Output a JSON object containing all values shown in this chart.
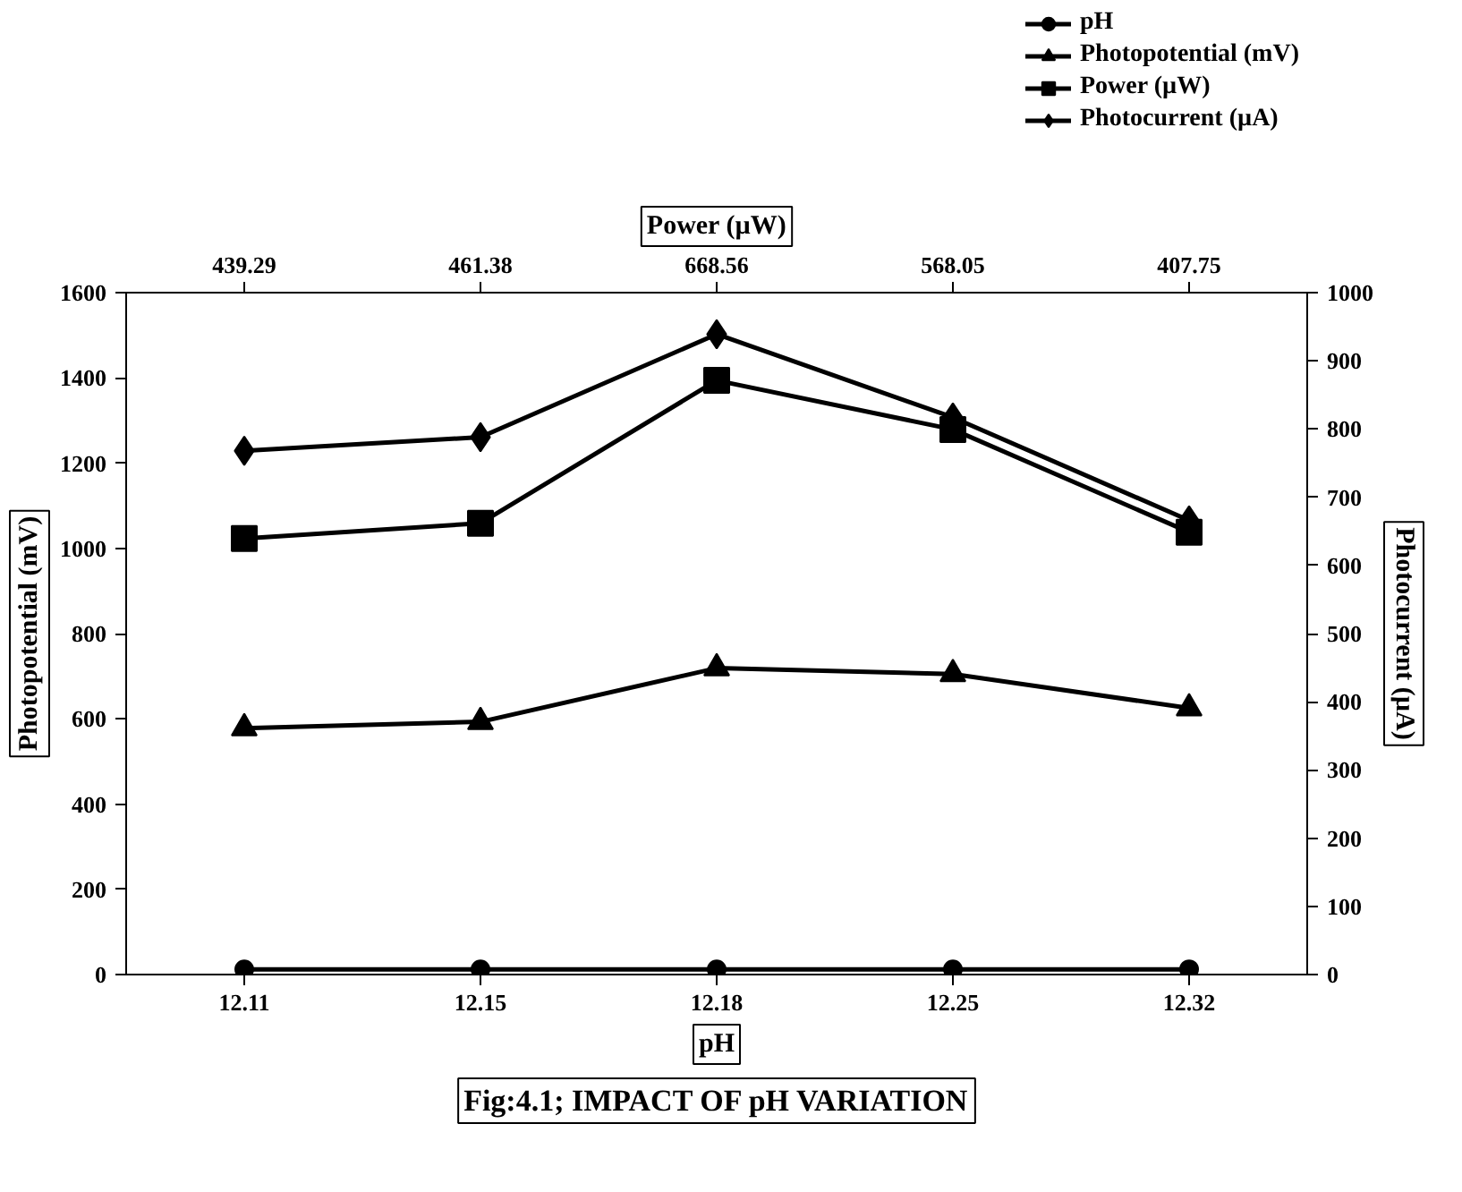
{
  "chart_data": {
    "type": "line",
    "title": "Fig:4.1; IMPACT OF pH VARIATION",
    "xlabel": "pH",
    "ylabel": "Photopotential (mV)",
    "y2label": "Photocurrent (µA)",
    "x2label": "Power (µW)",
    "categories": [
      "12.11",
      "12.15",
      "12.18",
      "12.25",
      "12.32"
    ],
    "annotations": [
      {
        "text": "439.29",
        "x": "12.11"
      },
      {
        "text": "461.38",
        "x": "12.15"
      },
      {
        "text": "668.56",
        "x": "12.18"
      },
      {
        "text": "568.05",
        "x": "12.25"
      },
      {
        "text": "407.75",
        "x": "12.32"
      }
    ],
    "ylim": [
      0,
      1600
    ],
    "yticks": [
      0,
      200,
      400,
      600,
      800,
      1000,
      1200,
      1400,
      1600
    ],
    "y2lim": [
      0,
      1000
    ],
    "y2ticks": [
      0,
      100,
      200,
      300,
      400,
      500,
      600,
      700,
      800,
      900,
      1000
    ],
    "legend": "top right",
    "grid": false,
    "series": [
      {
        "name": "pH",
        "color": "#000000",
        "marker": "circle",
        "values": [
          12.11,
          12.15,
          12.18,
          12.25,
          12.32
        ]
      },
      {
        "name": "Photopotential (mV)",
        "color": "#000000",
        "marker": "triangle",
        "values": [
          578,
          593,
          719,
          705,
          625
        ]
      },
      {
        "name": "Power (µW)",
        "color": "#000000",
        "marker": "square",
        "values": [
          1023,
          1059,
          1394,
          1279,
          1038
        ]
      },
      {
        "name": "Photocurrent (µA)",
        "color": "#000000",
        "marker": "diamond",
        "axis": "y2",
        "values": [
          768,
          788,
          939,
          817,
          666
        ]
      }
    ]
  }
}
